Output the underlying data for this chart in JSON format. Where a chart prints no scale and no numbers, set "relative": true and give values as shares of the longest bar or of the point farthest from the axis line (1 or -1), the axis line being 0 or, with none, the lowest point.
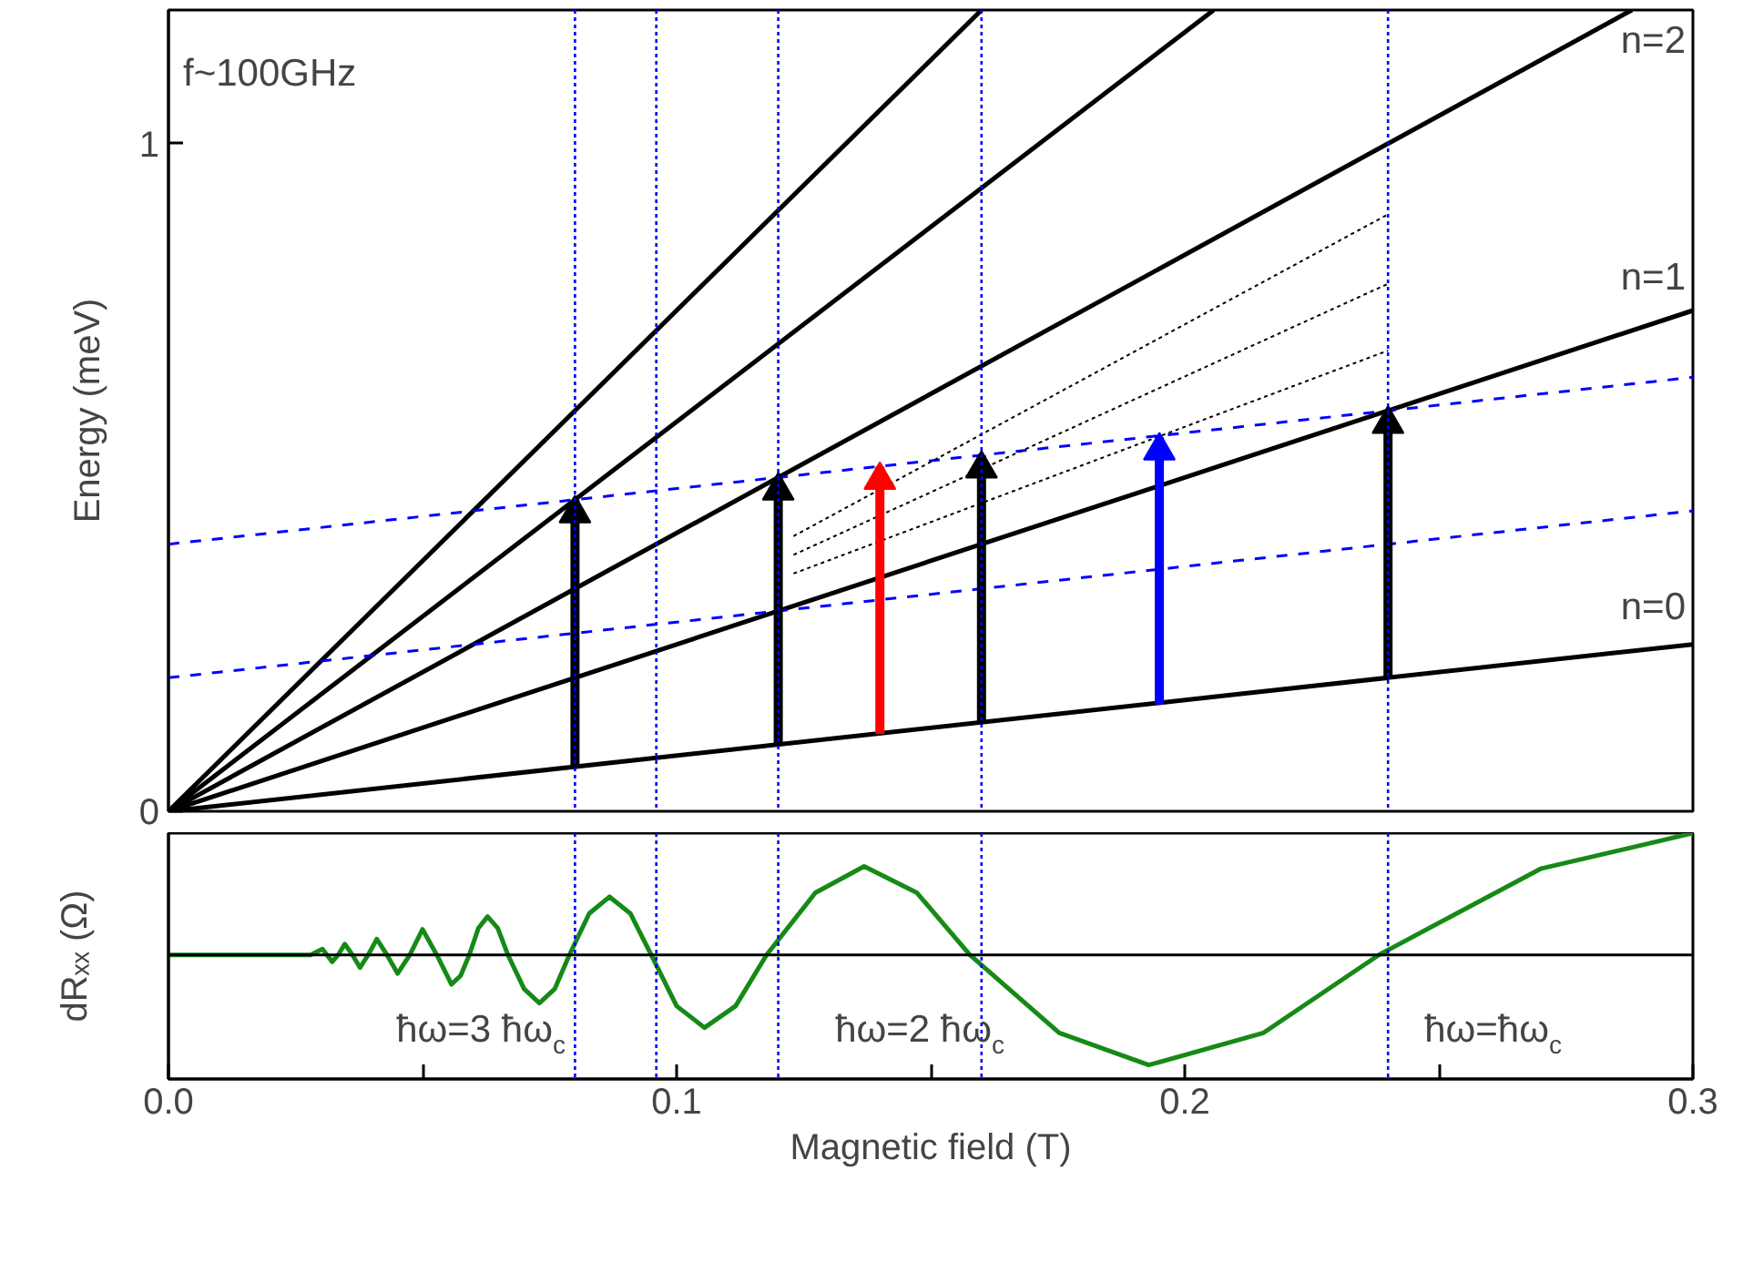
{
  "chart_data": [
    {
      "type": "line",
      "ylabel": "Energy (meV)",
      "xlim": [
        0,
        0.3
      ],
      "ylim": [
        0,
        1.2
      ],
      "yticks": [
        0,
        1
      ],
      "tick_labels": "y",
      "grid": false,
      "annotations": [
        "f~100GHz",
        "n=0",
        "n=1",
        "n=2"
      ],
      "ref_lines": [
        {
          "axis": "x",
          "value": 0.08,
          "color": "#0000ff",
          "line_style": "dotted"
        },
        {
          "axis": "x",
          "value": 0.096,
          "color": "#0000ff",
          "line_style": "dotted"
        },
        {
          "axis": "x",
          "value": 0.12,
          "color": "#0000ff",
          "line_style": "dotted"
        },
        {
          "axis": "x",
          "value": 0.16,
          "color": "#0000ff",
          "line_style": "dotted"
        },
        {
          "axis": "x",
          "value": 0.24,
          "color": "#0000ff",
          "line_style": "dotted"
        }
      ],
      "series": [
        {
          "color": "#000000",
          "line_style": "solid",
          "x": [
            0,
            0.3
          ],
          "values": [
            0,
            0.25
          ]
        },
        {
          "color": "#000000",
          "line_style": "solid",
          "x": [
            0,
            0.3
          ],
          "values": [
            0,
            0.75
          ]
        },
        {
          "color": "#000000",
          "line_style": "solid",
          "x": [
            0,
            0.288
          ],
          "values": [
            0,
            1.2
          ]
        },
        {
          "color": "#000000",
          "line_style": "solid",
          "x": [
            0,
            0.2057
          ],
          "values": [
            0,
            1.2
          ]
        },
        {
          "color": "#000000",
          "line_style": "solid",
          "x": [
            0,
            0.16
          ],
          "values": [
            0,
            1.2
          ]
        },
        {
          "color": "#0000ff",
          "line_style": "dashed",
          "x": [
            0,
            0.3
          ],
          "values": [
            0.4,
            0.65
          ]
        },
        {
          "color": "#0000ff",
          "line_style": "dashed",
          "x": [
            0,
            0.3
          ],
          "values": [
            0.2,
            0.45
          ]
        },
        {
          "color": "#000000",
          "line_style": "dotted",
          "x": [
            0.123,
            0.24
          ],
          "values": [
            0.412,
            0.894
          ]
        },
        {
          "color": "#000000",
          "line_style": "dotted",
          "x": [
            0.123,
            0.24
          ],
          "values": [
            0.384,
            0.79
          ]
        },
        {
          "color": "#000000",
          "line_style": "dotted",
          "x": [
            0.123,
            0.24
          ],
          "values": [
            0.356,
            0.69
          ]
        },
        {
          "type": "scatter",
          "marker": "triangle",
          "x": [
            0.08,
            0.12,
            0.14,
            0.16,
            0.195,
            0.24
          ],
          "values": [
            0.446,
            0.48,
            0.496,
            0.513,
            0.54,
            0.58
          ],
          "colors": [
            "#000000",
            "#000000",
            "#ff0000",
            "#000000",
            "#0000ff",
            "#000000"
          ]
        },
        {
          "type": "bar",
          "x": [
            0.08,
            0.12,
            0.14,
            0.16,
            0.195,
            0.24
          ],
          "base": [
            0.066,
            0.1,
            0.116,
            0.133,
            0.16,
            0.2
          ],
          "values": [
            0.4,
            0.4,
            0.4,
            0.4,
            0.4,
            0.4
          ],
          "colors": [
            "#000000",
            "#000000",
            "#ff0000",
            "#000000",
            "#0000ff",
            "#000000"
          ]
        }
      ]
    },
    {
      "type": "line",
      "relative": true,
      "xlabel": "Magnetic field (T)",
      "ylabel": "dRₓₓ (Ω)",
      "xlim": [
        0,
        0.3
      ],
      "xticks": [
        {
          "value": 0,
          "label": "0.0"
        },
        {
          "value": 0.05,
          "label": null
        },
        0.1,
        {
          "value": 0.15,
          "label": null
        },
        0.2,
        {
          "value": 0.25,
          "label": null
        },
        0.3
      ],
      "tick_labels": "x",
      "grid": false,
      "annotations": [
        "ħω=3 ħω$_{c}$",
        "ħω=2 ħω$_{c}$",
        "ħω=ħω$_{c}$"
      ],
      "ref_lines": [
        {
          "axis": "x",
          "value": 0.08,
          "color": "#0000ff",
          "line_style": "dotted"
        },
        {
          "axis": "x",
          "value": 0.096,
          "color": "#0000ff",
          "line_style": "dotted"
        },
        {
          "axis": "x",
          "value": 0.12,
          "color": "#0000ff",
          "line_style": "dotted"
        },
        {
          "axis": "x",
          "value": 0.16,
          "color": "#0000ff",
          "line_style": "dotted"
        },
        {
          "axis": "x",
          "value": 0.24,
          "color": "#0000ff",
          "line_style": "dotted"
        }
      ],
      "series": [
        {
          "color": "#168a16",
          "x": [
            0,
            0.028,
            0.0303,
            0.0312,
            0.0322,
            0.0334,
            0.0347,
            0.0362,
            0.0377,
            0.0393,
            0.041,
            0.043,
            0.0451,
            0.0475,
            0.05,
            0.0528,
            0.0557,
            0.0575,
            0.0592,
            0.061,
            0.0628,
            0.0648,
            0.0668,
            0.07,
            0.073,
            0.076,
            0.0789,
            0.0828,
            0.0868,
            0.0909,
            0.095,
            0.1,
            0.1055,
            0.1116,
            0.1177,
            0.1273,
            0.1369,
            0.1473,
            0.1577,
            0.1753,
            0.1929,
            0.2155,
            0.2382,
            0.27,
            0.3
          ],
          "values": [
            0,
            0,
            0.048,
            0,
            -0.057,
            0,
            0.089,
            0,
            -0.105,
            0,
            0.13,
            0,
            -0.153,
            0,
            0.21,
            0,
            -0.242,
            -0.17,
            0,
            0.22,
            0.315,
            0.22,
            0,
            -0.28,
            -0.396,
            -0.28,
            0,
            0.34,
            0.477,
            0.34,
            0,
            -0.42,
            -0.598,
            -0.42,
            0,
            0.51,
            0.727,
            0.51,
            0,
            -0.64,
            -0.905,
            -0.64,
            0,
            0.707,
            1
          ]
        }
      ]
    }
  ]
}
